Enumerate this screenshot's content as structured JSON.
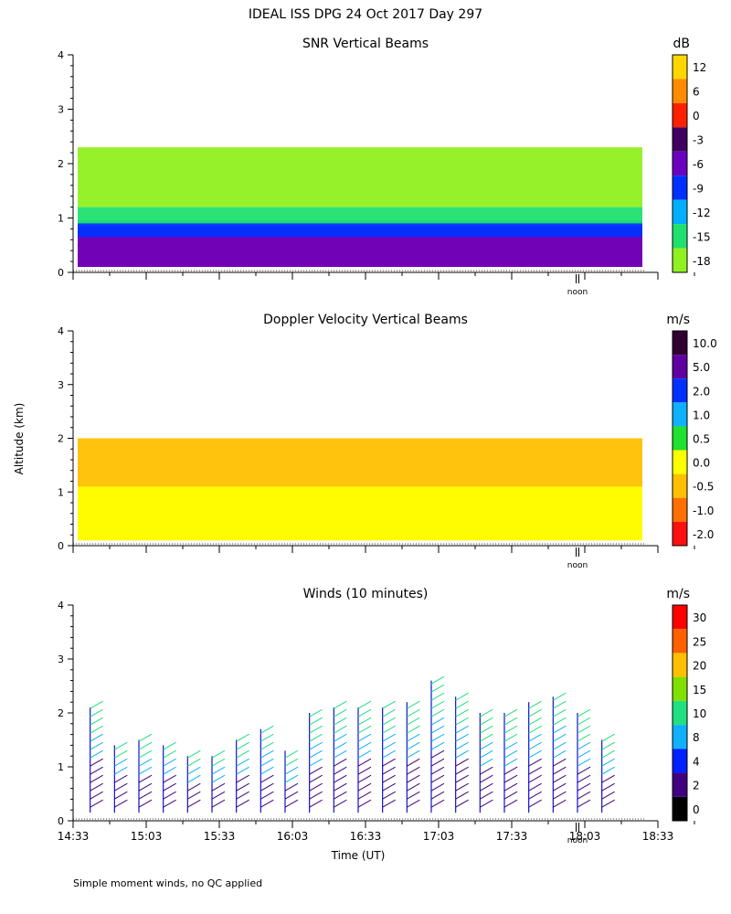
{
  "figure": {
    "title": "IDEAL ISS DPG  24 Oct 2017 Day 297",
    "ylabel": "Altitude (km)",
    "xlabel": "Time (UT)",
    "footnote": "Simple moment winds, no QC applied",
    "noon_label": "noon"
  },
  "chart_data": [
    {
      "type": "heatmap",
      "title": "SNR Vertical Beams",
      "ylim": [
        0,
        4
      ],
      "y_ticks": [
        "0",
        "1",
        "2",
        "3",
        "4"
      ],
      "colorbar": {
        "unit": "dB",
        "levels": [
          "12",
          "6",
          "0",
          "-3",
          "-6",
          "-9",
          "-12",
          "-15",
          "-18"
        ],
        "colors": [
          "#ffd700",
          "#ff8c00",
          "#ff2000",
          "#400060",
          "#6a00c0",
          "#0030ff",
          "#00b0ff",
          "#20e070",
          "#90f020"
        ]
      },
      "layers": [
        {
          "level": "0",
          "y_range": [
            0.1,
            0.65
          ]
        },
        {
          "level": "-6",
          "y_range": [
            0.1,
            0.85
          ]
        },
        {
          "level": "-9",
          "y_range": [
            0.65,
            0.95
          ]
        },
        {
          "level": "-15",
          "y_range": [
            0.9,
            1.2
          ]
        },
        {
          "level": "-18",
          "y_range": [
            1.2,
            2.3
          ]
        }
      ]
    },
    {
      "type": "heatmap",
      "title": "Doppler Velocity Vertical Beams",
      "ylim": [
        0,
        4
      ],
      "y_ticks": [
        "0",
        "1",
        "2",
        "3",
        "4"
      ],
      "colorbar": {
        "unit": "m/s",
        "levels": [
          "10.0",
          "5.0",
          "2.0",
          "1.0",
          "0.5",
          "0.0",
          "-0.5",
          "-1.0",
          "-2.0"
        ],
        "colors": [
          "#300030",
          "#6000a0",
          "#0030ff",
          "#10b0ff",
          "#20e030",
          "#ffff00",
          "#ffc000",
          "#ff7000",
          "#ff1010"
        ]
      },
      "layers": [
        {
          "level": "-0.5",
          "y_range": [
            0.1,
            1.2
          ]
        },
        {
          "level": "0.0",
          "y_range": [
            0.1,
            1.1
          ]
        },
        {
          "level": "-0.5",
          "y_range": [
            1.2,
            2.0
          ]
        }
      ]
    },
    {
      "type": "scatter",
      "title": "Winds (10 minutes)",
      "ylim": [
        0,
        4
      ],
      "y_ticks": [
        "0",
        "1",
        "2",
        "3",
        "4"
      ],
      "x_ticks": [
        "14:33",
        "15:03",
        "15:33",
        "16:03",
        "16:33",
        "17:03",
        "17:33",
        "18:03",
        "18:33"
      ],
      "colorbar": {
        "unit": "m/s",
        "levels": [
          "30",
          "25",
          "20",
          "15",
          "10",
          "8",
          "4",
          "2",
          "0"
        ],
        "colors": [
          "#ff0000",
          "#ff6000",
          "#ffc000",
          "#80e000",
          "#20e080",
          "#10b0ff",
          "#0020ff",
          "#400080",
          "#000000"
        ]
      },
      "profiles": [
        {
          "time": "14:40",
          "top_km": 2.1
        },
        {
          "time": "14:50",
          "top_km": 1.4
        },
        {
          "time": "15:00",
          "top_km": 1.5
        },
        {
          "time": "15:10",
          "top_km": 1.4
        },
        {
          "time": "15:20",
          "top_km": 1.2
        },
        {
          "time": "15:30",
          "top_km": 1.2
        },
        {
          "time": "15:40",
          "top_km": 1.5
        },
        {
          "time": "15:50",
          "top_km": 1.7
        },
        {
          "time": "16:00",
          "top_km": 1.3
        },
        {
          "time": "16:10",
          "top_km": 2.0
        },
        {
          "time": "16:20",
          "top_km": 2.1
        },
        {
          "time": "16:30",
          "top_km": 2.1
        },
        {
          "time": "16:40",
          "top_km": 2.1
        },
        {
          "time": "16:50",
          "top_km": 2.2
        },
        {
          "time": "17:00",
          "top_km": 2.6
        },
        {
          "time": "17:10",
          "top_km": 2.3
        },
        {
          "time": "17:20",
          "top_km": 2.0
        },
        {
          "time": "17:30",
          "top_km": 2.0
        },
        {
          "time": "17:40",
          "top_km": 2.2
        },
        {
          "time": "17:50",
          "top_km": 2.3
        },
        {
          "time": "18:00",
          "top_km": 2.0
        },
        {
          "time": "18:10",
          "top_km": 1.5
        }
      ]
    }
  ]
}
